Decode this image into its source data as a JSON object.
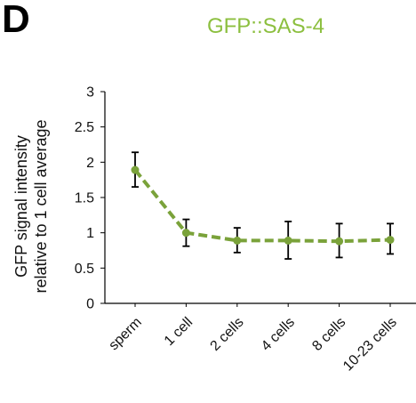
{
  "panel_label": "D",
  "colors": {
    "series": "#7aa23a",
    "title": "#8cbf3f",
    "errorbar": "#000000",
    "axis": "#000000"
  },
  "chart_data": {
    "type": "line",
    "title": "GFP::SAS-4",
    "ylabel_lines": [
      "GFP signal intensity",
      "relative to 1 cell average"
    ],
    "xlabel": "",
    "categories": [
      "sperm",
      "1 cell",
      "2 cells",
      "4 cells",
      "8 cells",
      "10-23 cells"
    ],
    "ylim": [
      0,
      3
    ],
    "yticks": [
      "0",
      "0.5",
      "1",
      "1.5",
      "2",
      "2.5",
      "3"
    ],
    "series": [
      {
        "values": [
          1.89,
          1.0,
          0.89,
          0.89,
          0.88,
          0.9
        ],
        "error_low": [
          1.65,
          0.81,
          0.72,
          0.63,
          0.65,
          0.7
        ],
        "error_high": [
          2.14,
          1.19,
          1.07,
          1.16,
          1.13,
          1.13
        ]
      }
    ],
    "grid": false,
    "line_style": "dashed"
  }
}
